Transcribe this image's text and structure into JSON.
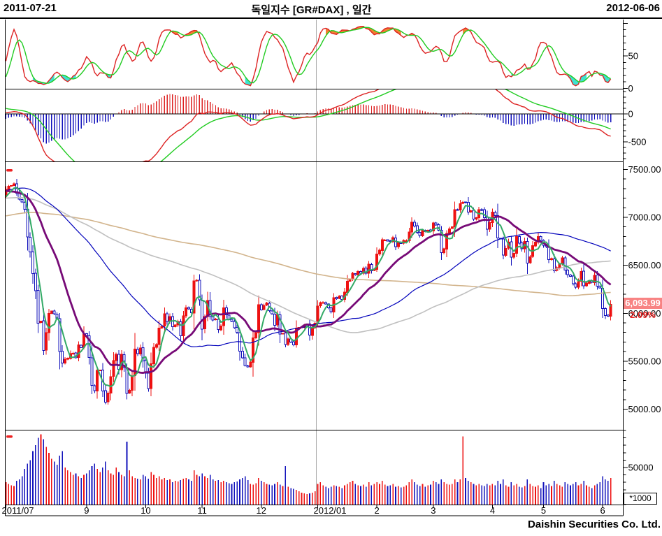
{
  "header": {
    "left_date": "2011-07-21",
    "title": "독일지수 [GR#DAX] , 일간",
    "right_date": "2012-06-06"
  },
  "footer": {
    "brand": "Daishin Securities Co. Ltd."
  },
  "price_label": {
    "value": "6,093.99",
    "change_pct": "2.09%"
  },
  "volume_unit_label": "*1000",
  "axis": {
    "stoch_ticks": [
      {
        "label": "50",
        "value": 50
      },
      {
        "label": "0",
        "value": 0
      }
    ],
    "macd_ticks": [
      {
        "label": "0",
        "value": 0
      },
      {
        "label": "-500",
        "value": -500
      }
    ],
    "price_ticks": [
      {
        "label": "7500.00",
        "value": 7500
      },
      {
        "label": "7000.00",
        "value": 7000
      },
      {
        "label": "6500.00",
        "value": 6500
      },
      {
        "label": "6000.00",
        "value": 6000
      },
      {
        "label": "5500.00",
        "value": 5500
      },
      {
        "label": "5000.00",
        "value": 5000
      }
    ],
    "volume_ticks": [
      {
        "label": "50000",
        "value": 50
      }
    ],
    "x_ticks": [
      {
        "label": "2011/07",
        "day": 0
      },
      {
        "label": "9",
        "day": 30
      },
      {
        "label": "10",
        "day": 52
      },
      {
        "label": "11",
        "day": 73
      },
      {
        "label": "12",
        "day": 95
      },
      {
        "label": "2012/01",
        "day": 116
      },
      {
        "label": "2",
        "day": 138
      },
      {
        "label": "3",
        "day": 159
      },
      {
        "label": "4",
        "day": 181
      },
      {
        "label": "5",
        "day": 200
      },
      {
        "label": "6",
        "day": 222
      }
    ],
    "year_separator_day": 115.5
  },
  "colors": {
    "candle_up": "#ee1111",
    "candle_down": "#1111bb",
    "ma5": "#33aa66",
    "ma20": "#770a77",
    "ma60": "#0000bb",
    "ma120": "#c0c0c0",
    "ma200": "#d2b48c",
    "stoch_fast": "#dd2222",
    "stoch_slow": "#22cc22",
    "stoch_fill_high": "#f08030",
    "stoch_fill_low": "#40e0d0",
    "macd_line": "#dd2222",
    "macd_signal": "#22cc22",
    "hist_pos": "#dd2222",
    "hist_neg": "#1111bb",
    "vol_up": "#ee1111",
    "vol_down": "#1111bb",
    "year_line": "#aaaaaa",
    "panel_marker": "#ee2222",
    "price_tag_bg": "#f88383",
    "pct_text": "#e82222"
  },
  "chart_data": {
    "type": "candlestick",
    "title": "독일지수 [GR#DAX] , 일간",
    "panels": [
      "stochastic(fast/slow)",
      "macd(line/signal/histogram)",
      "price+MA(5,20,60,120,200)",
      "volume"
    ],
    "ma_windows": [
      5,
      20,
      60,
      120,
      200
    ],
    "price_range": [
      4780,
      7580
    ],
    "stoch_range": [
      0,
      107
    ],
    "macd_range": [
      -850,
      450
    ],
    "volume_range_k": [
      0,
      101
    ],
    "last_close": 6093.99,
    "change_pct": 2.09,
    "prehistory_anchors": [
      6280,
      6320,
      6350,
      6380,
      6420,
      6460,
      6520,
      6580,
      6650,
      6720,
      6780,
      6850,
      6900,
      6950,
      7000,
      7060,
      6980,
      6920,
      7000,
      7080,
      7140,
      7180,
      7230,
      7280,
      7330,
      7370,
      7400,
      7350,
      7260,
      7160,
      7060,
      6960,
      6830,
      6680,
      6750,
      6900,
      7020,
      7120,
      7180,
      7240,
      7300,
      7360,
      7410,
      7450,
      7480,
      7430,
      7370,
      7300,
      7230,
      7160,
      7250
    ],
    "closes": [
      7290,
      7326,
      7330,
      7349,
      7252,
      7190,
      7159,
      7083,
      6796,
      6640,
      6415,
      6236,
      5898,
      5917,
      5613,
      5798,
      5997,
      6022,
      5995,
      5948,
      5602,
      5480,
      5522,
      5532,
      5581,
      5584,
      5537,
      5670,
      5643,
      5784,
      5766,
      5538,
      5246,
      5193,
      5405,
      5408,
      5189,
      5072,
      5166,
      5340,
      5508,
      5573,
      5416,
      5571,
      5433,
      5164,
      5196,
      5345,
      5628,
      5578,
      5639,
      5502,
      5376,
      5216,
      5473,
      5645,
      5675,
      5847,
      5865,
      5994,
      5914,
      5967,
      5859,
      5877,
      5913,
      5766,
      5971,
      6055,
      6046,
      6006,
      6338,
      6346,
      6141,
      5835,
      5966,
      6133,
      5966,
      5928,
      5939,
      5829,
      5868,
      6057,
      5985,
      5933,
      5913,
      5850,
      5800,
      5606,
      5537,
      5457,
      5441,
      5492,
      5745,
      5799,
      6088,
      6036,
      6081,
      6106,
      6028,
      5994,
      5874,
      5986,
      5785,
      5790,
      5675,
      5731,
      5701,
      5670,
      5847,
      5852,
      5857,
      5878,
      5889,
      5771,
      5849,
      5898,
      6075,
      6111,
      6112,
      6096,
      6058,
      6017,
      6163,
      6152,
      6180,
      6143,
      6220,
      6332,
      6354,
      6416,
      6404,
      6436,
      6419,
      6470,
      6416,
      6512,
      6444,
      6459,
      6617,
      6656,
      6766,
      6764,
      6752,
      6748,
      6788,
      6693,
      6738,
      6728,
      6758,
      6757,
      6848,
      6948,
      6908,
      6843,
      6810,
      6864,
      6850,
      6866,
      6856,
      6941,
      6921,
      6866,
      6633,
      6671,
      6834,
      6880,
      6901,
      7079,
      7079,
      7144,
      7158,
      7154,
      7054,
      7071,
      6981,
      6996,
      7079,
      7079,
      6998,
      6875,
      6947,
      7056,
      7018,
      6784,
      6775,
      6606,
      6675,
      6743,
      6583,
      6625,
      6801,
      6732,
      6671,
      6750,
      6523,
      6590,
      6705,
      6740,
      6801,
      6761,
      6710,
      6694,
      6561,
      6569,
      6444,
      6475,
      6518,
      6579,
      6451,
      6401,
      6383,
      6308,
      6271,
      6331,
      6435,
      6286,
      6315,
      6339,
      6323,
      6396,
      6281,
      6264,
      6050,
      5978,
      5969,
      6094
    ],
    "volumes_k": [
      30,
      28,
      26,
      25,
      32,
      34,
      38,
      48,
      55,
      60,
      72,
      80,
      90,
      95,
      88,
      78,
      70,
      62,
      58,
      54,
      66,
      72,
      50,
      46,
      44,
      40,
      42,
      38,
      36,
      40,
      42,
      46,
      52,
      55,
      48,
      44,
      50,
      58,
      46,
      42,
      40,
      50,
      44,
      40,
      38,
      85,
      46,
      38,
      36,
      35,
      34,
      40,
      38,
      35,
      44,
      40,
      36,
      38,
      34,
      36,
      33,
      34,
      30,
      32,
      31,
      33,
      35,
      36,
      34,
      32,
      46,
      40,
      38,
      42,
      38,
      36,
      40,
      34,
      32,
      33,
      30,
      32,
      30,
      29,
      28,
      30,
      31,
      34,
      36,
      38,
      33,
      28,
      27,
      29,
      36,
      32,
      30,
      28,
      27,
      26,
      28,
      30,
      27,
      25,
      52,
      24,
      22,
      21,
      20,
      18,
      16,
      15,
      14,
      15,
      16,
      18,
      28,
      30,
      26,
      24,
      22,
      24,
      26,
      25,
      24,
      22,
      26,
      28,
      30,
      32,
      28,
      26,
      25,
      27,
      24,
      30,
      26,
      28,
      30,
      28,
      32,
      27,
      25,
      26,
      28,
      24,
      25,
      23,
      24,
      26,
      30,
      34,
      30,
      27,
      25,
      28,
      24,
      26,
      27,
      32,
      30,
      28,
      34,
      30,
      28,
      27,
      28,
      34,
      30,
      34,
      92,
      36,
      32,
      30,
      28,
      26,
      28,
      26,
      25,
      28,
      26,
      28,
      26,
      32,
      28,
      34,
      26,
      24,
      30,
      26,
      28,
      24,
      23,
      25,
      34,
      28,
      25,
      24,
      26,
      22,
      30,
      26,
      28,
      25,
      32,
      28,
      26,
      24,
      30,
      28,
      26,
      28,
      30,
      26,
      28,
      32,
      26,
      24,
      22,
      26,
      28,
      30,
      38,
      34,
      32,
      36
    ]
  }
}
